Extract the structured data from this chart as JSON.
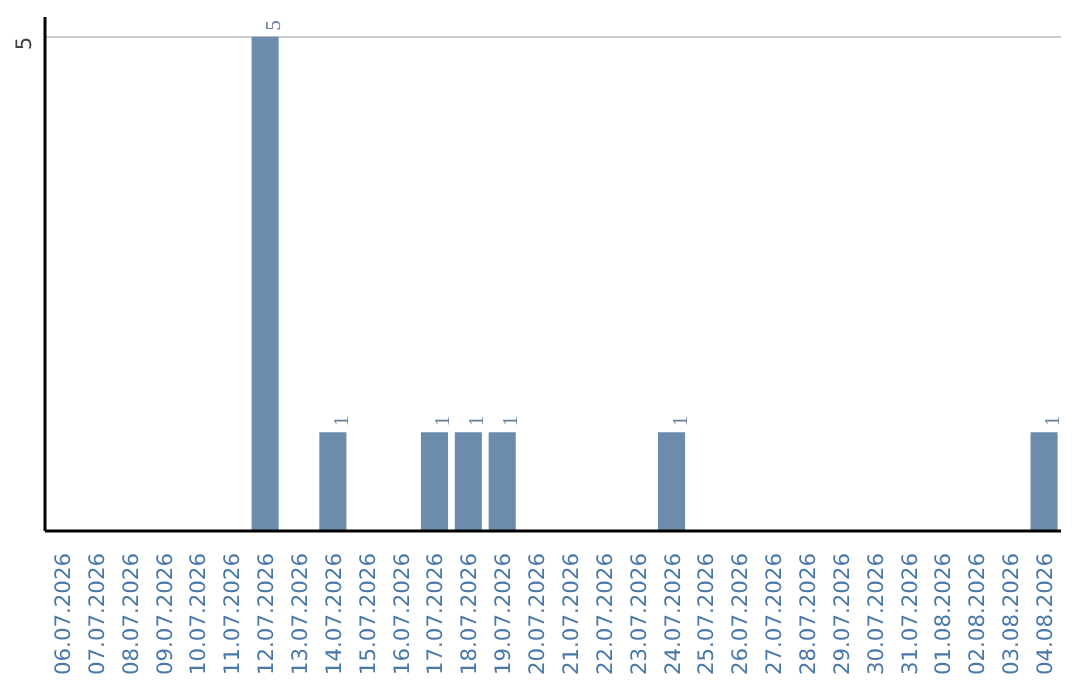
{
  "chart_data": {
    "type": "bar",
    "categories": [
      "06.07.2026",
      "07.07.2026",
      "08.07.2026",
      "09.07.2026",
      "10.07.2026",
      "11.07.2026",
      "12.07.2026",
      "13.07.2026",
      "14.07.2026",
      "15.07.2026",
      "16.07.2026",
      "17.07.2026",
      "18.07.2026",
      "19.07.2026",
      "20.07.2026",
      "21.07.2026",
      "22.07.2026",
      "23.07.2026",
      "24.07.2026",
      "25.07.2026",
      "26.07.2026",
      "27.07.2026",
      "28.07.2026",
      "29.07.2026",
      "30.07.2026",
      "31.07.2026",
      "01.08.2026",
      "02.08.2026",
      "03.08.2026",
      "04.08.2026"
    ],
    "values": [
      0,
      0,
      0,
      0,
      0,
      0,
      5,
      0,
      1,
      0,
      0,
      1,
      1,
      1,
      0,
      0,
      0,
      0,
      1,
      0,
      0,
      0,
      0,
      0,
      0,
      0,
      0,
      0,
      0,
      1
    ],
    "value_labels": [
      null,
      null,
      null,
      null,
      null,
      null,
      "5",
      null,
      "1",
      null,
      null,
      "1",
      "1",
      "1",
      null,
      null,
      null,
      null,
      "1",
      null,
      null,
      null,
      null,
      null,
      null,
      null,
      null,
      null,
      null,
      "1"
    ],
    "color": "#6b8cab",
    "ylim": [
      0,
      5.2
    ],
    "yticks": [
      5
    ],
    "grid": "y"
  }
}
